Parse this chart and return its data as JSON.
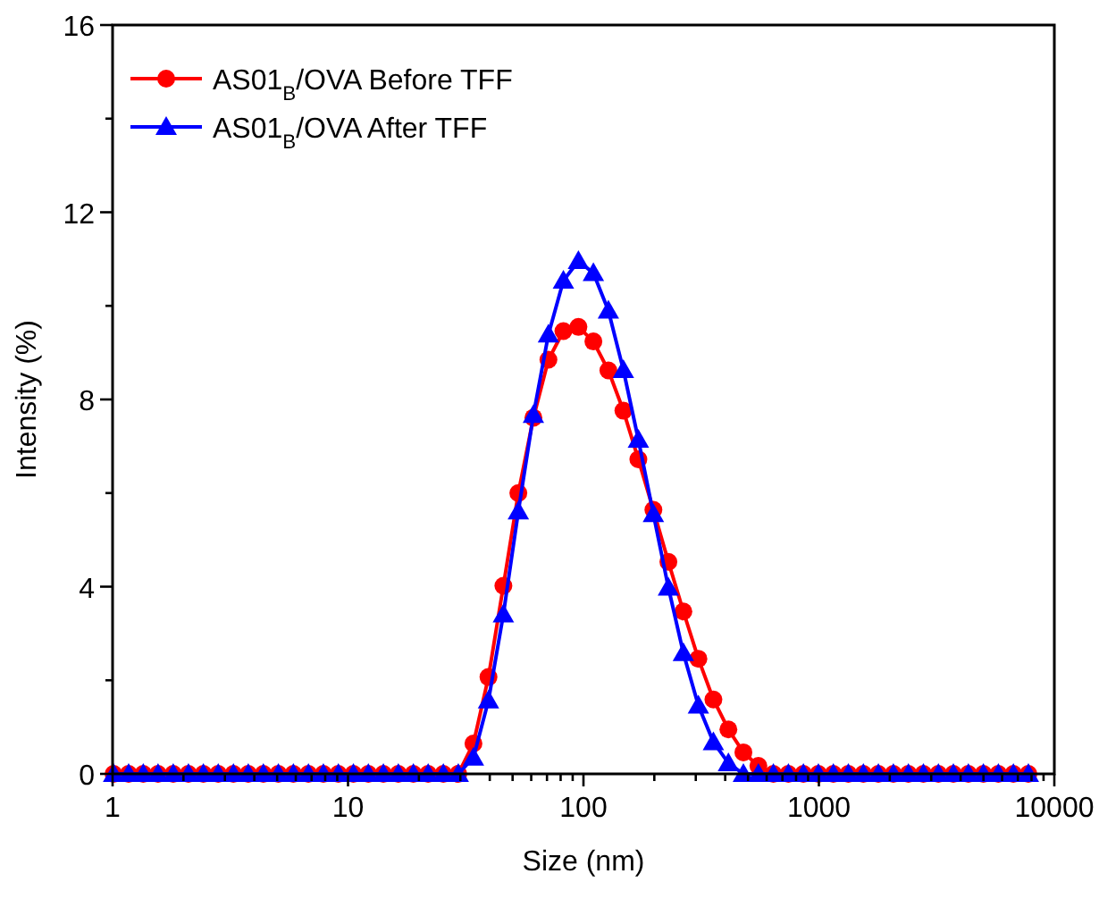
{
  "chart_data": {
    "type": "line",
    "xlabel": "Size (nm)",
    "ylabel": "Intensity (%)",
    "log": "x",
    "marker": "circle",
    "legend": "top left",
    "x": [
      1.01,
      1.17,
      1.35,
      1.56,
      1.81,
      2.1,
      2.43,
      2.81,
      3.26,
      3.77,
      4.37,
      5.06,
      5.86,
      6.79,
      7.86,
      9.1,
      10.54,
      12.2,
      14.13,
      16.36,
      18.95,
      21.9,
      25.4,
      29.4,
      34.1,
      39.5,
      45.7,
      52.9,
      61.3,
      71.0,
      82.2,
      95.2,
      110.2,
      127.6,
      147.8,
      171.1,
      198.2,
      229.5,
      265.7,
      307.7,
      356.4,
      412.7,
      477.9,
      553.4,
      640.8,
      742.1,
      859.4,
      995,
      1152,
      1334,
      1545,
      1789,
      2072,
      2400,
      2779,
      3218,
      3726,
      4315,
      4997,
      5786,
      6700,
      7759
    ],
    "series": [
      {
        "name": "AS01$_{B}$/OVA Before TFF",
        "color": "#ff0000",
        "marker": "circle",
        "values": [
          0,
          0,
          0,
          0,
          0,
          0,
          0,
          0,
          0,
          0,
          0,
          0,
          0,
          0,
          0,
          0,
          0,
          0,
          0,
          0,
          0,
          0,
          0,
          0,
          0.65,
          2.07,
          4.02,
          6.0,
          7.61,
          8.85,
          9.46,
          9.55,
          9.24,
          8.62,
          7.76,
          6.72,
          5.64,
          4.53,
          3.47,
          2.46,
          1.59,
          0.95,
          0.46,
          0.17,
          0,
          0,
          0,
          0,
          0,
          0,
          0,
          0,
          0,
          0,
          0,
          0,
          0,
          0,
          0,
          0,
          0,
          0
        ]
      },
      {
        "name": "AS01$_{B}$/OVA After TFF",
        "color": "#0000ff",
        "marker": "triangle",
        "values": [
          0,
          0,
          0,
          0,
          0,
          0,
          0,
          0,
          0,
          0,
          0,
          0,
          0,
          0,
          0,
          0,
          0,
          0,
          0,
          0,
          0,
          0,
          0,
          0,
          0.35,
          1.57,
          3.41,
          5.61,
          7.67,
          9.39,
          10.54,
          10.96,
          10.7,
          9.9,
          8.63,
          7.14,
          5.55,
          3.98,
          2.58,
          1.46,
          0.68,
          0.23,
          0,
          0,
          0,
          0,
          0,
          0,
          0,
          0,
          0,
          0,
          0,
          0,
          0,
          0,
          0,
          0,
          0,
          0,
          0,
          0
        ]
      }
    ],
    "xlim": [
      1,
      10000
    ],
    "xticks": [
      1,
      {
        "value": 2,
        "label": null
      },
      {
        "value": 3,
        "label": null
      },
      {
        "value": 4,
        "label": null
      },
      {
        "value": 5,
        "label": null
      },
      {
        "value": 6,
        "label": null
      },
      {
        "value": 7,
        "label": null
      },
      {
        "value": 8,
        "label": null
      },
      {
        "value": 9,
        "label": null
      },
      10,
      {
        "value": 20,
        "label": null
      },
      {
        "value": 30,
        "label": null
      },
      {
        "value": 40,
        "label": null
      },
      {
        "value": 50,
        "label": null
      },
      {
        "value": 60,
        "label": null
      },
      {
        "value": 70,
        "label": null
      },
      {
        "value": 80,
        "label": null
      },
      {
        "value": 90,
        "label": null
      },
      100,
      {
        "value": 200,
        "label": null
      },
      {
        "value": 300,
        "label": null
      },
      {
        "value": 400,
        "label": null
      },
      {
        "value": 500,
        "label": null
      },
      {
        "value": 600,
        "label": null
      },
      {
        "value": 700,
        "label": null
      },
      {
        "value": 800,
        "label": null
      },
      {
        "value": 900,
        "label": null
      },
      1000,
      {
        "value": 2000,
        "label": null
      },
      {
        "value": 3000,
        "label": null
      },
      {
        "value": 4000,
        "label": null
      },
      {
        "value": 5000,
        "label": null
      },
      {
        "value": 6000,
        "label": null
      },
      {
        "value": 7000,
        "label": null
      },
      {
        "value": 8000,
        "label": null
      },
      {
        "value": 9000,
        "label": null
      },
      10000
    ],
    "ylim": [
      0,
      16
    ],
    "yticks": [
      0,
      {
        "value": 2,
        "label": null
      },
      4,
      {
        "value": 6,
        "label": null
      },
      8,
      {
        "value": 10,
        "label": null
      },
      12,
      {
        "value": 14,
        "label": null
      },
      16
    ],
    "grid": false
  }
}
